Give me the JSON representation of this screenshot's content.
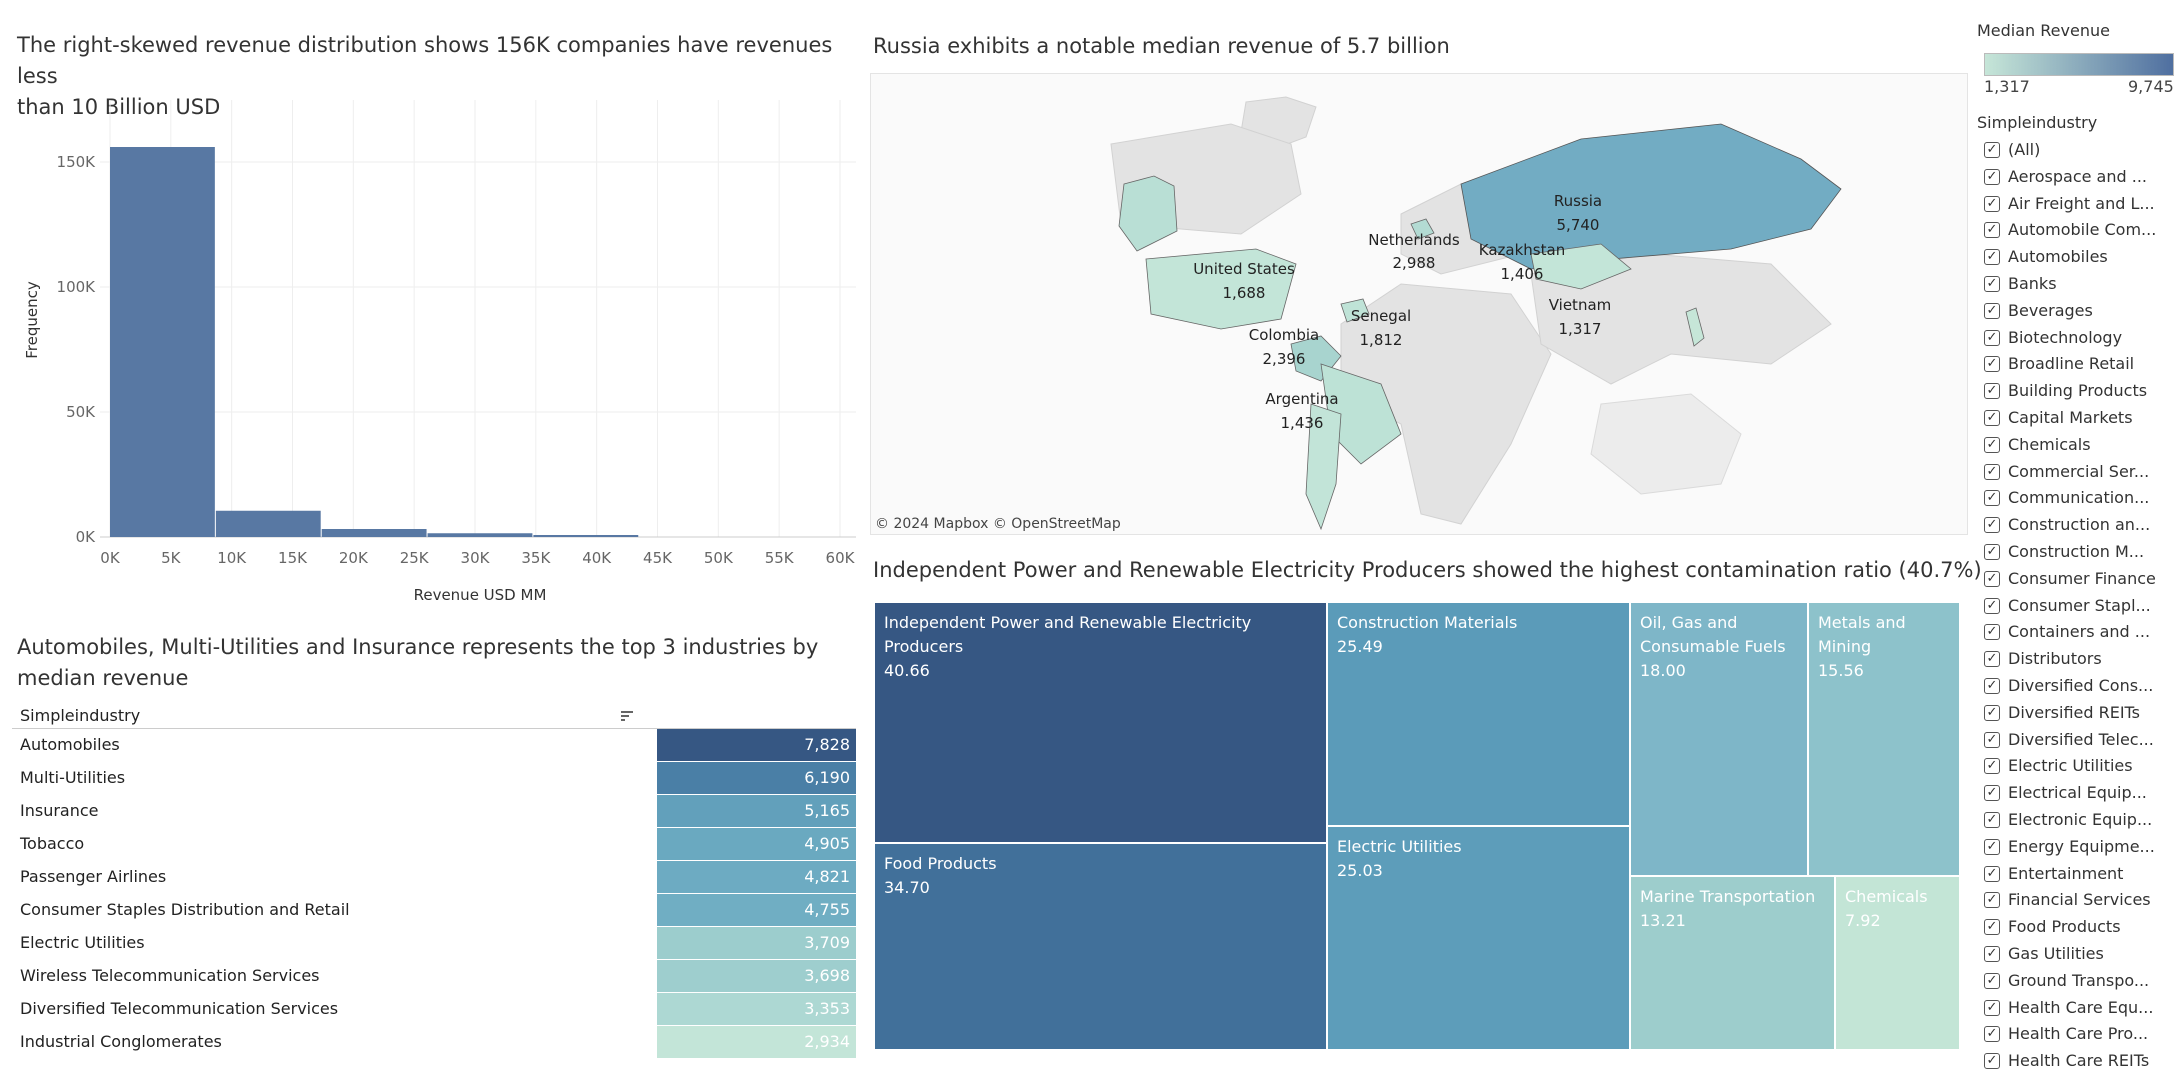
{
  "histogram": {
    "title": "The right-skewed revenue distribution shows 156K companies have revenues less than 10 Billion USD",
    "title_lines": [
      "The right-skewed revenue distribution shows 156K companies have revenues less",
      "than 10 Billion USD"
    ],
    "chart_data": {
      "type": "bar",
      "xlabel": "Revenue USD MM",
      "ylabel": "Frequency",
      "x_ticks": [
        "0K",
        "5K",
        "10K",
        "15K",
        "20K",
        "25K",
        "30K",
        "35K",
        "40K",
        "45K",
        "50K",
        "55K",
        "60K"
      ],
      "y_ticks": [
        "0K",
        "50K",
        "100K",
        "150K"
      ],
      "xlim": [
        0,
        60000
      ],
      "ylim": [
        0,
        160000
      ],
      "bin_width": 8700,
      "bins": [
        {
          "start": 0,
          "value": 156000
        },
        {
          "start": 8700,
          "value": 10500
        },
        {
          "start": 17400,
          "value": 3200
        },
        {
          "start": 26100,
          "value": 1500
        },
        {
          "start": 34800,
          "value": 800
        }
      ],
      "color": "#5878a3"
    }
  },
  "map": {
    "title": "Russia exhibits a notable median revenue of 5.7 billion",
    "attribution": "© 2024 Mapbox  © OpenStreetMap",
    "countries": [
      {
        "name": "Russia",
        "value": "5,740"
      },
      {
        "name": "Netherlands",
        "value": "2,988"
      },
      {
        "name": "Kazakhstan",
        "value": "1,406"
      },
      {
        "name": "United States",
        "value": "1,688"
      },
      {
        "name": "Senegal",
        "value": "1,812"
      },
      {
        "name": "Vietnam",
        "value": "1,317"
      },
      {
        "name": "Colombia",
        "value": "2,396"
      },
      {
        "name": "Argentina",
        "value": "1,436"
      }
    ]
  },
  "table": {
    "title_lines": [
      "Automobiles, Multi-Utilities and Insurance represents the top 3 industries by",
      "median revenue"
    ],
    "column_header": "Simpleindustry",
    "rows": [
      {
        "label": "Automobiles",
        "value": "7,828",
        "color": "#365783"
      },
      {
        "label": "Multi-Utilities",
        "value": "6,190",
        "color": "#4a7fa6"
      },
      {
        "label": "Insurance",
        "value": "5,165",
        "color": "#62a0bb"
      },
      {
        "label": "Tobacco",
        "value": "4,905",
        "color": "#6aa9c0"
      },
      {
        "label": "Passenger Airlines",
        "value": "4,821",
        "color": "#6dabc2"
      },
      {
        "label": "Consumer Staples Distribution and Retail",
        "value": "4,755",
        "color": "#70aec3"
      },
      {
        "label": "Electric Utilities",
        "value": "3,709",
        "color": "#9ccdcd"
      },
      {
        "label": "Wireless Telecommunication Services",
        "value": "3,698",
        "color": "#9ecece"
      },
      {
        "label": "Diversified Telecommunication Services",
        "value": "3,353",
        "color": "#add8d3"
      },
      {
        "label": "Industrial Conglomerates",
        "value": "2,934",
        "color": "#c3e5d8"
      }
    ]
  },
  "treemap": {
    "title": "Independent Power and Renewable Electricity Producers showed the highest contamination ratio (40.7%)",
    "cells": [
      {
        "label": "Independent Power and Renewable Electricity Producers",
        "value": "40.66",
        "color": "#365783"
      },
      {
        "label": "Food Products",
        "value": "34.70",
        "color": "#41709a"
      },
      {
        "label": "Construction Materials",
        "value": "25.49",
        "color": "#5b9bb9"
      },
      {
        "label": "Electric Utilities",
        "value": "25.03",
        "color": "#5d9dba"
      },
      {
        "label": "Oil, Gas and Consumable Fuels",
        "value": "18.00",
        "color": "#7eb6c8"
      },
      {
        "label": "Metals and Mining",
        "value": "15.56",
        "color": "#8dc2cb"
      },
      {
        "label": "Marine Transportation",
        "value": "13.21",
        "color": "#9dcdcc"
      },
      {
        "label": "Chemicals",
        "value": "7.92",
        "color": "#c3e5d6"
      }
    ]
  },
  "legend": {
    "title": "Median Revenue",
    "min": "1,317",
    "max": "9,745",
    "color_low": "#c6e6d8",
    "color_high": "#4f6fa0"
  },
  "filter": {
    "title": "Simpleindustry",
    "check_glyph": "✓",
    "items": [
      "(All)",
      "Aerospace and ...",
      "Air Freight and L...",
      "Automobile Com...",
      "Automobiles",
      "Banks",
      "Beverages",
      "Biotechnology",
      "Broadline Retail",
      "Building Products",
      "Capital Markets",
      "Chemicals",
      "Commercial Ser...",
      "Communication...",
      "Construction an...",
      "Construction M...",
      "Consumer Finance",
      "Consumer Stapl...",
      "Containers and ...",
      "Distributors",
      "Diversified Cons...",
      "Diversified REITs",
      "Diversified Telec...",
      "Electric Utilities",
      "Electrical Equip...",
      "Electronic Equip...",
      "Energy Equipme...",
      "Entertainment",
      "Financial Services",
      "Food Products",
      "Gas Utilities",
      "Ground Transpo...",
      "Health Care Equ...",
      "Health Care Pro...",
      "Health Care REITs"
    ]
  }
}
